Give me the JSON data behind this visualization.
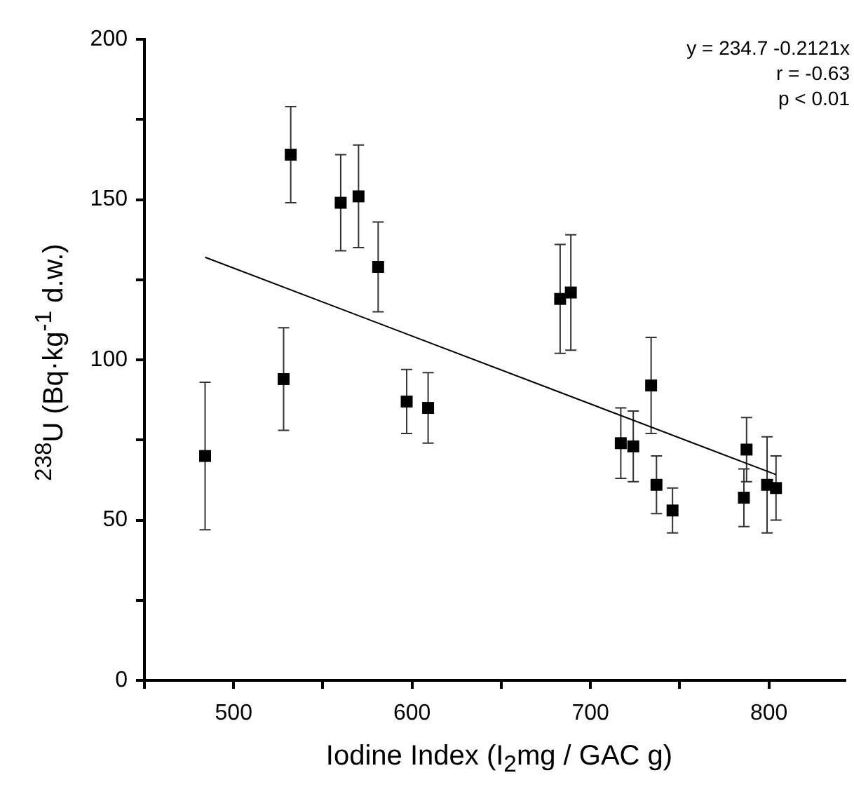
{
  "chart_data": {
    "type": "scatter",
    "xlabel": "Iodine Index  (I$_{2}$mg / GAC g)",
    "ylabel": "$^{238}$U  (Bq·kg$^{-1}$ d.w.)",
    "annotations": [
      "y = 234.7 -0.2121x",
      "r = -0.63",
      "p < 0.01"
    ],
    "xlim": [
      450,
      843
    ],
    "xticks": [
      {
        "value": 450,
        "label": null
      },
      500,
      {
        "value": 550,
        "label": null
      },
      600,
      {
        "value": 650,
        "label": null
      },
      700,
      {
        "value": 750,
        "label": null
      },
      800
    ],
    "ylim": [
      0,
      200
    ],
    "yticks": [
      0,
      {
        "value": 25,
        "label": null
      },
      50,
      {
        "value": 75,
        "label": null
      },
      100,
      {
        "value": 125,
        "label": null
      },
      150,
      {
        "value": 175,
        "label": null
      },
      200
    ],
    "grid": false,
    "legend": false,
    "marker": "square",
    "series": [
      {
        "type": "scatter",
        "color": "#000000",
        "x": [
          484,
          528,
          532,
          560,
          570,
          581,
          597,
          609,
          683,
          689,
          717,
          724,
          734,
          737,
          746,
          786,
          787.5,
          799,
          804
        ],
        "values": [
          70,
          94,
          164,
          149,
          151,
          129,
          87,
          85,
          119,
          121,
          74,
          73,
          92,
          61,
          53,
          57,
          72,
          61,
          60
        ],
        "errors": [
          23,
          16,
          15,
          15,
          16,
          14,
          10,
          11,
          17,
          18,
          11,
          11,
          15,
          9,
          7,
          9,
          10,
          15,
          10
        ]
      },
      {
        "type": "line",
        "color": "#000000",
        "x": [
          484,
          804
        ],
        "values": [
          132.0,
          64.2
        ],
        "marker": "none",
        "line_style": "solid"
      }
    ]
  }
}
